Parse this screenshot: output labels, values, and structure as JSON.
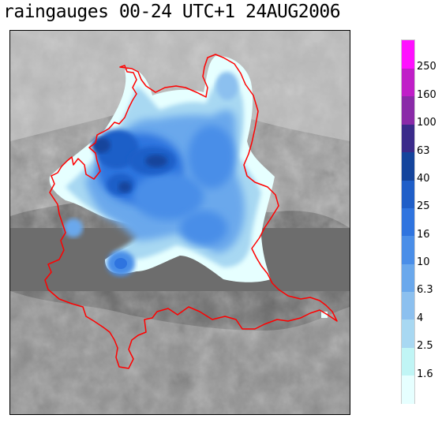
{
  "title": "raingauges 00-24 UTC+1 24AUG2006",
  "legend": {
    "labels": [
      "1.6",
      "2.5",
      "4",
      "6.3",
      "10",
      "16",
      "25",
      "40",
      "63",
      "100",
      "160",
      "250"
    ],
    "colors": [
      "#e6ffff",
      "#c0f5f5",
      "#a8d8f2",
      "#8cc0ef",
      "#6aa8ec",
      "#4a8ee8",
      "#2f74df",
      "#1f5ec8",
      "#14449c",
      "#3a2a8a",
      "#8a2aa8",
      "#c01ec8",
      "#ff10ff"
    ]
  }
}
